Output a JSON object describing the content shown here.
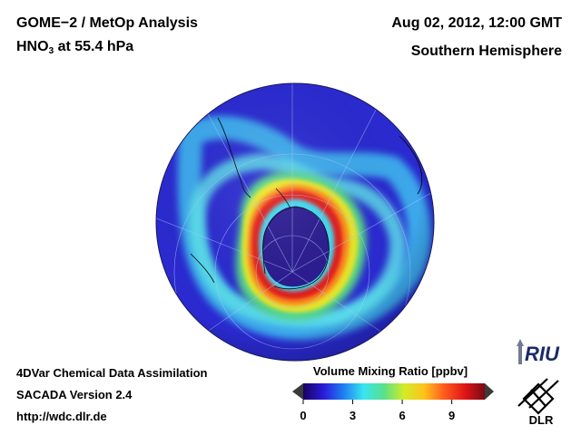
{
  "header": {
    "left_line1": "GOME−2 / MetOp Analysis",
    "species_base": "HNO",
    "species_subscript": "3",
    "species_rest": " at 55.4 hPa",
    "right_line1": "Aug 02, 2012, 12:00 GMT",
    "right_line2": "Southern Hemisphere"
  },
  "footer": {
    "line1": "4DVar Chemical Data Assimilation",
    "line2": "SACADA Version 2.4",
    "line3": "http://wdc.dlr.de"
  },
  "colorbar": {
    "title": "Volume Mixing Ratio [ppbv]",
    "min": 0,
    "max": 11,
    "ticks": [
      "0",
      "3",
      "6",
      "9"
    ],
    "tick_values": [
      0,
      3,
      6,
      9
    ],
    "stops": [
      "#1a0060",
      "#2a1bd8",
      "#1f7ff2",
      "#38e6f0",
      "#58e08a",
      "#d2ec25",
      "#ffc21a",
      "#ff5a1e",
      "#e01616",
      "#7a0a14"
    ]
  },
  "logos": {
    "riu_text": "RIU",
    "dlr_text": "DLR"
  },
  "map": {
    "projection": "orthographic",
    "hemisphere": "Southern Hemisphere",
    "variable": "HNO3",
    "units": "ppbv",
    "colors": {
      "background_low": "#2a2ad0",
      "band_cyan": "#40d8f0",
      "vortex_core": "#2a1a90",
      "collar_red": "#e21a1a",
      "coastline": "#000000",
      "grid": "#b0c8ff"
    }
  }
}
